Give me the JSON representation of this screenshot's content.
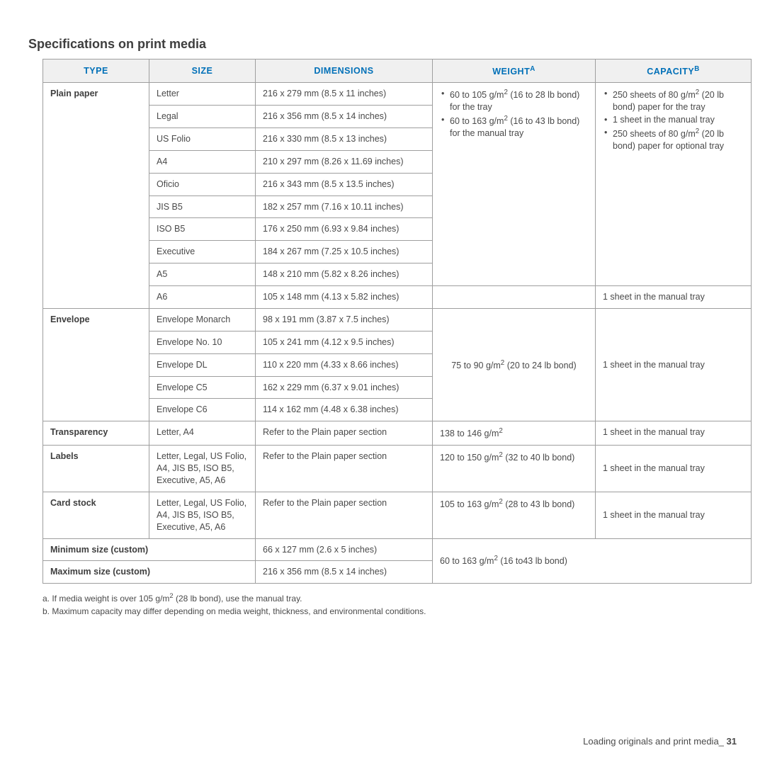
{
  "section_title": "Specifications on print media",
  "columns": {
    "c1": "TYPE",
    "c2": "SIZE",
    "c3": "DIMENSIONS",
    "c4_html": "WEIGHT<sup>A</sup>",
    "c5_html": "CAPACITY<sup>B</sup>"
  },
  "plain": {
    "type": "Plain paper",
    "rows": [
      {
        "size": "Letter",
        "dim": "216 x 279 mm (8.5 x 11 inches)"
      },
      {
        "size": "Legal",
        "dim": "216 x 356 mm (8.5 x 14 inches)"
      },
      {
        "size": "US Folio",
        "dim": "216 x 330 mm (8.5 x 13 inches)"
      },
      {
        "size": "A4",
        "dim": "210 x 297 mm (8.26 x 11.69 inches)"
      },
      {
        "size": "Oficio",
        "dim": "216 x 343 mm (8.5 x 13.5 inches)"
      },
      {
        "size": "JIS B5",
        "dim": "182 x 257 mm (7.16 x 10.11 inches)"
      },
      {
        "size": "ISO B5",
        "dim": "176 x 250 mm (6.93 x 9.84 inches)"
      },
      {
        "size": "Executive",
        "dim": "184 x 267 mm (7.25 x 10.5 inches)"
      },
      {
        "size": "A5",
        "dim": "148 x 210 mm (5.82 x 8.26 inches)"
      },
      {
        "size": "A6",
        "dim": "105 x 148 mm (4.13 x 5.82 inches)"
      }
    ],
    "weight_bul1_html": "60 to 105 g/m<sup>2</sup> (16 to 28 lb bond) for the tray",
    "weight_bul2_html": "60 to 163 g/m<sup>2</sup> (16 to 43 lb bond) for the manual tray",
    "cap_bul1_html": "250 sheets of 80 g/m<sup>2</sup> (20 lb bond) paper for the tray",
    "cap_bul2_html": "1 sheet in the manual tray",
    "cap_bul3_html": "250 sheets of 80 g/m<sup>2</sup> (20 lb bond) paper for optional tray",
    "a6_capacity": "1 sheet in the manual tray"
  },
  "envelope": {
    "type": "Envelope",
    "rows": [
      {
        "size": "Envelope Monarch",
        "dim": "98 x 191 mm (3.87 x 7.5 inches)"
      },
      {
        "size": "Envelope No. 10",
        "dim": "105 x 241 mm (4.12 x 9.5 inches)"
      },
      {
        "size": "Envelope DL",
        "dim": "110 x 220 mm (4.33 x 8.66 inches)"
      },
      {
        "size": "Envelope C5",
        "dim": "162 x 229 mm (6.37 x 9.01 inches)"
      },
      {
        "size": "Envelope C6",
        "dim": "114 x 162 mm (4.48 x 6.38 inches)"
      }
    ],
    "weight_html": "75 to 90 g/m<sup>2</sup> (20 to 24 lb bond)",
    "capacity": "1 sheet in the manual tray"
  },
  "transparency": {
    "type": "Transparency",
    "size": "Letter, A4",
    "dim": "Refer to the Plain paper section",
    "weight_html": "138 to 146 g/m<sup>2</sup>",
    "capacity": "1 sheet in the manual tray"
  },
  "labels": {
    "type": "Labels",
    "size": "Letter, Legal, US Folio, A4, JIS B5, ISO B5, Executive, A5, A6",
    "dim": "Refer to the Plain paper section",
    "weight_html": "120 to 150 g/m<sup>2</sup> (32 to 40 lb bond)",
    "capacity": "1 sheet in the manual tray"
  },
  "card": {
    "type": "Card stock",
    "size": "Letter, Legal, US Folio, A4, JIS B5, ISO B5, Executive, A5, A6",
    "dim": "Refer to the Plain paper section",
    "weight_html": "105 to 163 g/m<sup>2</sup> (28 to 43 lb bond)",
    "capacity": "1 sheet in the manual tray"
  },
  "min": {
    "label": "Minimum size (custom)",
    "dim": "66 x 127 mm (2.6 x 5 inches)"
  },
  "max": {
    "label": "Maximum size (custom)",
    "dim": "216 x 356 mm (8.5 x 14 inches)"
  },
  "custom_weight_html": "60 to 163 g/m<sup>2</sup> (16 to43 lb bond)",
  "footnote_a_html": "a. If media weight is over 105 g/m<sup>2</sup> (28 lb bond), use the manual tray.",
  "footnote_b": "b. Maximum capacity may differ depending on media weight, thickness, and environmental conditions.",
  "footer_text": "Loading originals and print media_",
  "footer_page": "31"
}
